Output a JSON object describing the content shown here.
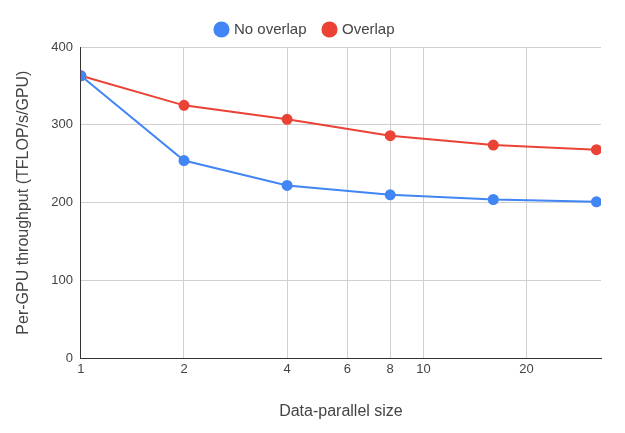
{
  "chart_data": {
    "type": "line",
    "x_label": "Data-parallel size",
    "y_label": "Per-GPU throughput (TFLOP/s/GPU)",
    "x": [
      1,
      2,
      4,
      8,
      16,
      32
    ],
    "series": [
      {
        "name": "No overlap",
        "color": "#4285f4",
        "values": [
          363,
          254,
          222,
          210,
          204,
          201
        ]
      },
      {
        "name": "Overlap",
        "color": "#ea4335",
        "values": [
          363,
          325,
          307,
          286,
          274,
          268
        ]
      }
    ],
    "log": "x",
    "xlim": [
      1,
      33
    ],
    "xticks": [
      1,
      2,
      4,
      6,
      8,
      10,
      20
    ],
    "ylim": [
      0,
      400
    ],
    "yticks": [
      0,
      100,
      200,
      300,
      400
    ],
    "grid": true,
    "legend": "top",
    "marker": "circle"
  }
}
